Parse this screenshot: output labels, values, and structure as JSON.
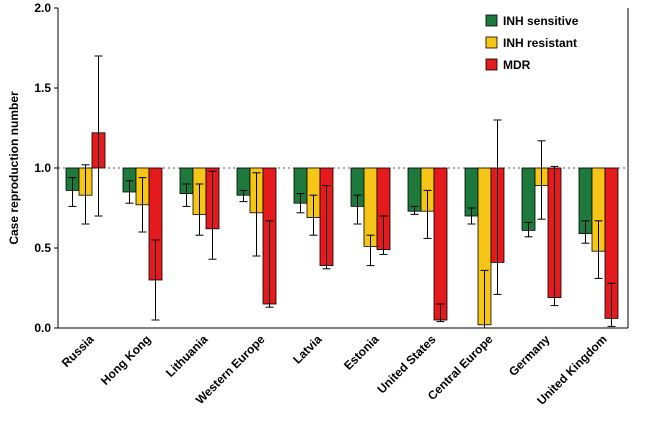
{
  "chart_data": {
    "type": "bar",
    "ylabel": "Case reproduction number",
    "ylim": [
      0,
      2.0
    ],
    "yticks": [
      "0.0",
      "0.5",
      "1.0",
      "1.5",
      "2.0"
    ],
    "baseline": 1.0,
    "baseline_style": "dotted",
    "legend_position": "top-right",
    "categories": [
      "Russia",
      "Hong Kong",
      "Lithuania",
      "Western Europe",
      "Latvia",
      "Estonia",
      "United States",
      "Central Europe",
      "Germany",
      "United Kingdom"
    ],
    "series": [
      {
        "name": "INH sensitive",
        "color": "#1e7a3c",
        "values": [
          0.86,
          0.85,
          0.84,
          0.83,
          0.78,
          0.76,
          0.73,
          0.7,
          0.61,
          0.59
        ],
        "err_low": [
          0.76,
          0.78,
          0.76,
          0.79,
          0.72,
          0.65,
          0.71,
          0.65,
          0.57,
          0.53
        ],
        "err_high": [
          0.94,
          0.92,
          0.9,
          0.86,
          0.84,
          0.83,
          0.76,
          0.75,
          0.66,
          0.67
        ]
      },
      {
        "name": "INH resistant",
        "color": "#f5c518",
        "values": [
          0.83,
          0.77,
          0.71,
          0.72,
          0.69,
          0.51,
          0.73,
          0.02,
          0.89,
          0.48
        ],
        "err_low": [
          0.65,
          0.6,
          0.58,
          0.45,
          0.58,
          0.39,
          0.56,
          0.0,
          0.68,
          0.31
        ],
        "err_high": [
          1.02,
          0.94,
          0.9,
          0.97,
          0.83,
          0.58,
          0.86,
          0.36,
          1.17,
          0.67
        ]
      },
      {
        "name": "MDR",
        "color": "#e41a1c",
        "values": [
          1.22,
          0.3,
          0.62,
          0.15,
          0.39,
          0.49,
          0.05,
          0.41,
          0.19,
          0.06
        ],
        "err_low": [
          0.7,
          0.05,
          0.43,
          0.13,
          0.37,
          0.46,
          0.04,
          0.21,
          0.14,
          0.01
        ],
        "err_high": [
          1.7,
          0.55,
          0.98,
          0.67,
          0.89,
          0.7,
          0.15,
          1.3,
          1.01,
          0.28
        ]
      }
    ]
  }
}
